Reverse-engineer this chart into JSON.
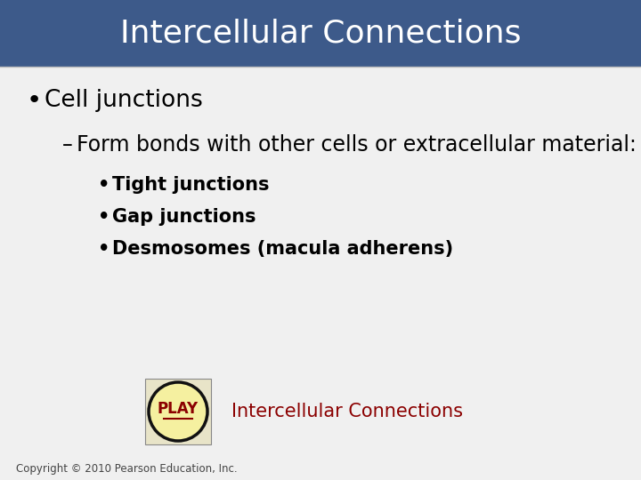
{
  "title": "Intercellular Connections",
  "title_bg_color": "#3d5a8a",
  "title_text_color": "#ffffff",
  "title_fontsize": 26,
  "bg_color": "#f0f0f0",
  "slide_bg_color": "#ffffff",
  "bullet1": "Cell junctions",
  "bullet1_fontsize": 19,
  "sub_bullet1": "Form bonds with other cells or extracellular material:",
  "sub_bullet1_fontsize": 17,
  "sub_sub_bullets": [
    "Tight junctions",
    "Gap junctions",
    "Desmosomes (macula adherens)"
  ],
  "sub_sub_fontsize": 15,
  "play_text": "PLAY",
  "play_circle_color": "#f5f0a0",
  "play_circle_border": "#111111",
  "play_rect_color": "#e8e4c8",
  "play_rect_border": "#888888",
  "play_text_color": "#8b0000",
  "play_underline_color": "#8b0000",
  "link_text": "Intercellular Connections",
  "link_text_color": "#8b0000",
  "link_fontsize": 15,
  "copyright_text": "Copyright © 2010 Pearson Education, Inc.",
  "copyright_fontsize": 8.5,
  "copyright_color": "#444444",
  "title_bar_height": 75,
  "fig_width": 7.2,
  "fig_height": 5.4,
  "dpi": 100
}
